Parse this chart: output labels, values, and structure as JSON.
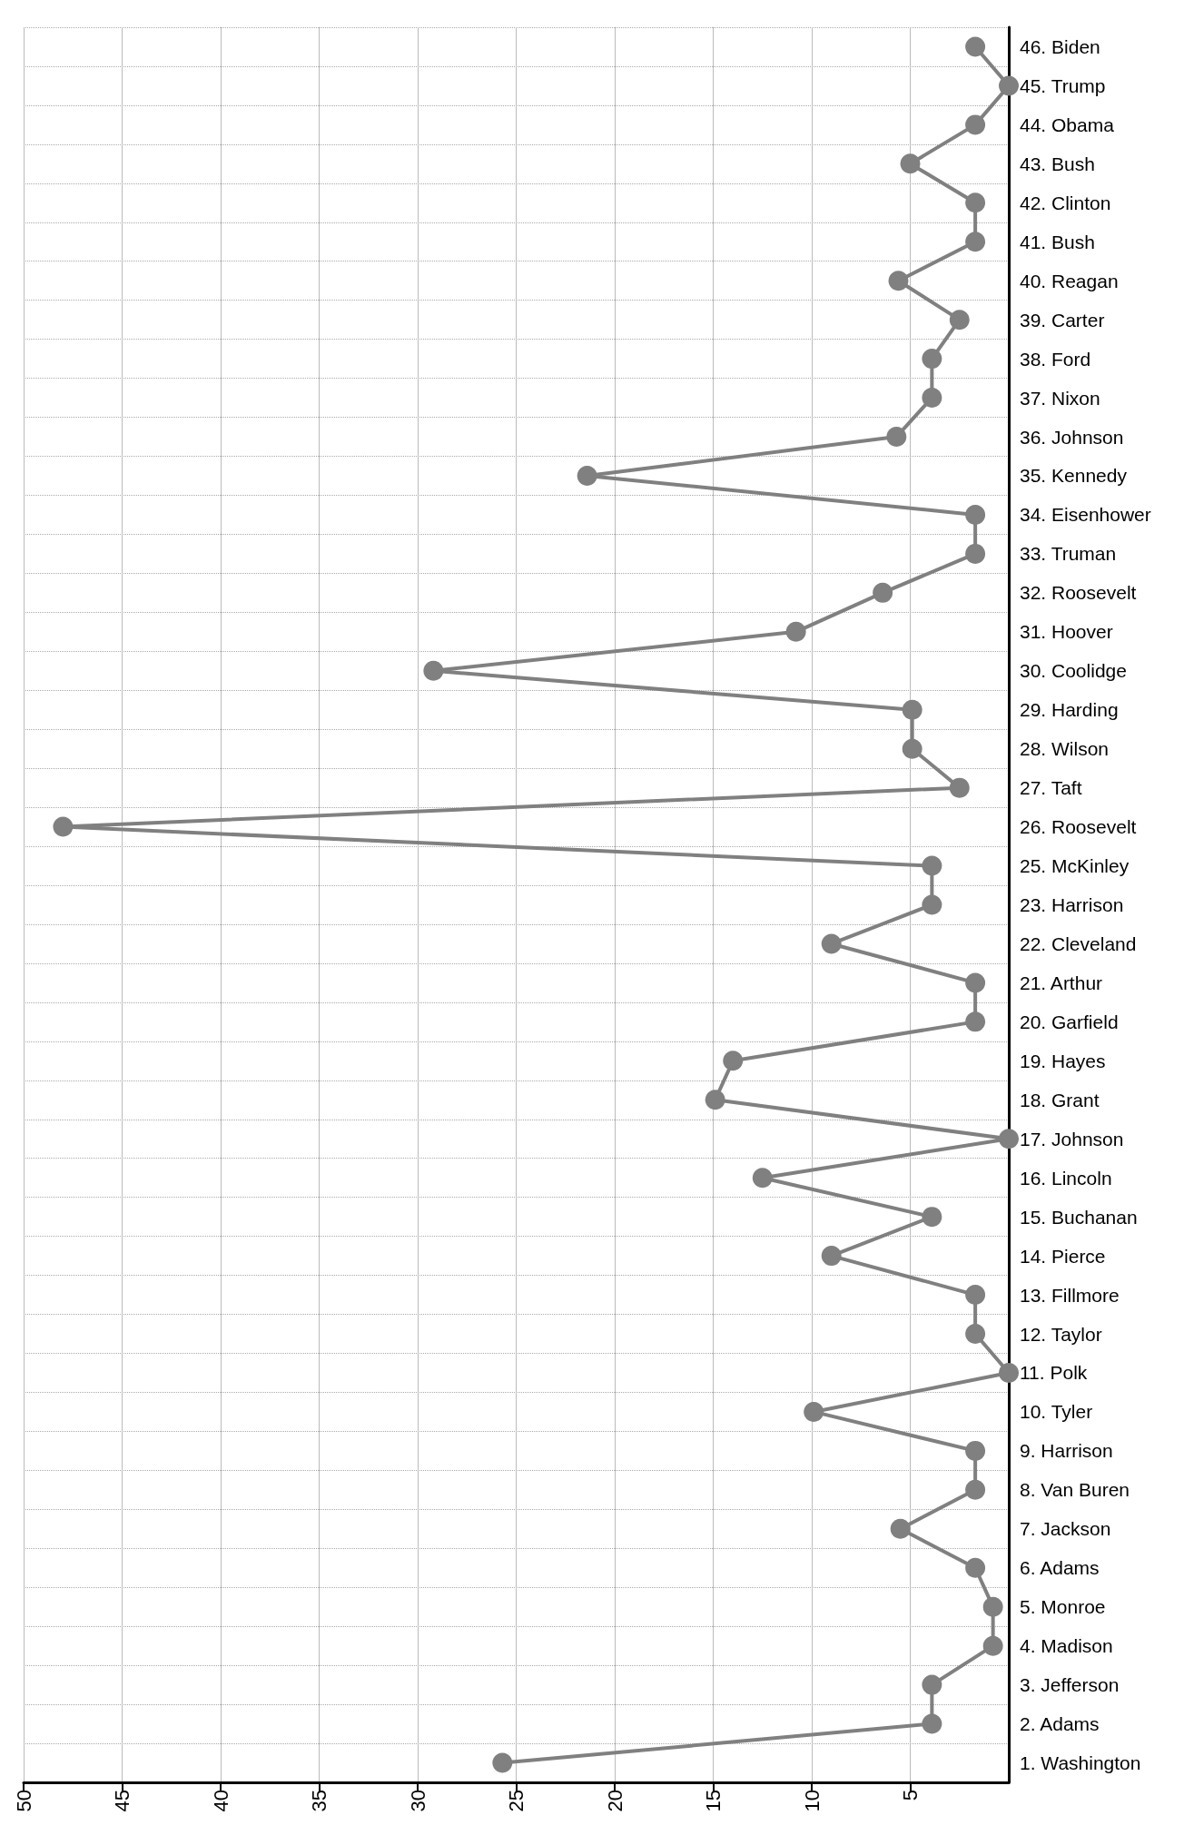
{
  "chart_data": {
    "type": "line",
    "orientation": "horizontal",
    "categories": [
      "46. Biden",
      "45. Trump",
      "44. Obama",
      "43. Bush",
      "42. Clinton",
      "41. Bush",
      "40. Reagan",
      "39. Carter",
      "38. Ford",
      "37. Nixon",
      "36. Johnson",
      "35. Kennedy",
      "34. Eisenhower",
      "33. Truman",
      "32. Roosevelt",
      "31. Hoover",
      "30. Coolidge",
      "29. Harding",
      "28. Wilson",
      "27. Taft",
      "26. Roosevelt",
      "25. McKinley",
      "23. Harrison",
      "22. Cleveland",
      "21. Arthur",
      "20. Garfield",
      "19. Hayes",
      "18. Grant",
      "17. Johnson",
      "16. Lincoln",
      "15. Buchanan",
      "14. Pierce",
      "13. Fillmore",
      "12. Taylor",
      "11. Polk",
      "10. Tyler",
      "9. Harrison",
      "8. Van Buren",
      "7. Jackson",
      "6. Adams",
      "5. Monroe",
      "4. Madison",
      "3. Jefferson",
      "2. Adams",
      "1. Washington"
    ],
    "values": [
      1.7,
      0,
      1.7,
      5,
      1.7,
      1.7,
      5.6,
      2.5,
      3.9,
      3.9,
      5.7,
      21.4,
      1.7,
      1.7,
      6.4,
      10.8,
      29.2,
      4.9,
      4.9,
      2.5,
      48,
      3.9,
      3.9,
      9,
      1.7,
      1.7,
      14,
      14.9,
      0,
      12.5,
      3.9,
      9,
      1.7,
      1.7,
      0,
      9.9,
      1.7,
      1.7,
      5.5,
      1.7,
      0.8,
      0.8,
      3.9,
      3.9,
      25.7
    ],
    "color": "#808080",
    "marker": "circle",
    "line_style": "solid",
    "grid": true,
    "xlim": [
      50,
      0
    ],
    "xticks": [
      50,
      45,
      40,
      35,
      30,
      25,
      20,
      15,
      10,
      5
    ]
  }
}
